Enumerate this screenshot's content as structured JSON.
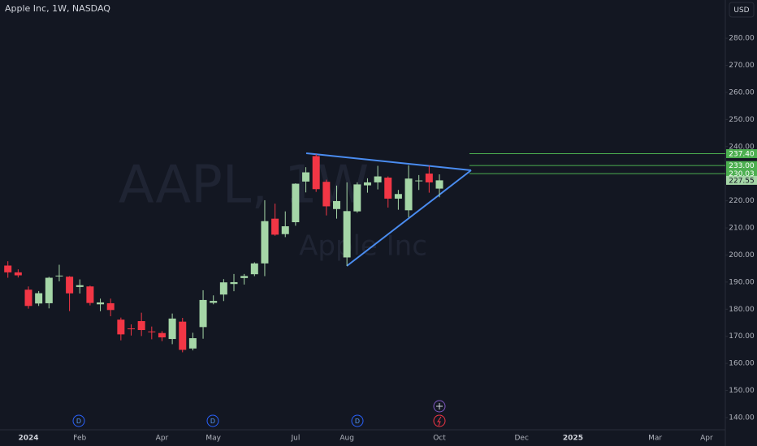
{
  "chart_data": {
    "type": "candlestick",
    "title": "Apple Inc, 1W, NASDAQ",
    "currency": "USD",
    "watermark": {
      "symbol": "AAPL, 1W",
      "name": "Apple Inc"
    },
    "categories": [
      null,
      null,
      "2024",
      null,
      null,
      null,
      null,
      "Feb",
      null,
      null,
      null,
      null,
      null,
      null,
      null,
      "Apr",
      null,
      null,
      null,
      null,
      "May",
      null,
      null,
      null,
      null,
      null,
      null,
      null,
      "Jul",
      null,
      null,
      null,
      null,
      "Aug",
      null,
      null,
      null,
      null,
      null,
      null,
      null,
      null,
      "Oct",
      null,
      null,
      null,
      null,
      null,
      null,
      null,
      "Dec",
      null,
      null,
      null,
      null,
      "2025",
      null,
      null,
      null,
      null,
      null,
      null,
      null,
      "Mar",
      null,
      null,
      null,
      null,
      "Apr",
      null
    ],
    "ohlc": {
      "open": [
        196.1,
        193.6,
        187.2,
        182.1,
        182.2,
        192.3,
        192.0,
        188.2,
        188.4,
        181.8,
        182.2,
        176.15,
        172.9,
        175.6,
        171.8,
        171.2,
        169.0,
        175.4,
        165.5,
        173.4,
        182.35,
        185.4,
        189.3,
        191.5,
        192.9,
        196.9,
        213.4,
        207.7,
        212.1,
        227.1,
        236.5,
        227.0,
        216.96,
        199.1,
        216.1,
        225.7,
        226.8,
        228.55,
        220.8,
        216.5,
        227.3,
        230.04,
        224.5,
        null,
        null,
        null,
        null,
        null,
        null,
        null,
        null,
        null,
        null,
        null,
        null,
        null,
        null,
        null,
        null,
        null,
        null,
        null,
        null,
        null,
        null,
        null,
        null,
        null,
        null,
        null
      ],
      "high": [
        197.7,
        194.7,
        188.4,
        186.7,
        191.95,
        196.4,
        192.2,
        191.0,
        188.7,
        183.9,
        183.9,
        176.9,
        174.4,
        178.7,
        173.6,
        171.9,
        178.4,
        176.8,
        171.3,
        187.0,
        185.1,
        191.1,
        193.0,
        193.0,
        197.3,
        220.2,
        218.95,
        216.1,
        226.45,
        232.4,
        237.2,
        227.8,
        225.6,
        226.8,
        226.8,
        228.3,
        232.9,
        229.0,
        224.0,
        233.1,
        229.5,
        233.0,
        229.75,
        null,
        null,
        null,
        null,
        null,
        null,
        null,
        null,
        null,
        null,
        null,
        null,
        null,
        null,
        null,
        null,
        null,
        null,
        null,
        null,
        null,
        null,
        null,
        null,
        null,
        null,
        null
      ],
      "low": [
        191.6,
        191.7,
        180.2,
        181.2,
        180.3,
        190.3,
        179.3,
        185.8,
        181.4,
        179.25,
        177.4,
        168.5,
        170.3,
        170.1,
        168.9,
        168.2,
        167.1,
        164.1,
        164.8,
        169.1,
        181.8,
        183.0,
        186.65,
        189.1,
        192.2,
        192.2,
        207.1,
        206.6,
        210.8,
        223.1,
        223.3,
        214.6,
        213.4,
        196.0,
        215.6,
        223.0,
        224.2,
        217.5,
        216.7,
        213.9,
        224.0,
        223.0,
        221.3,
        null,
        null,
        null,
        null,
        null,
        null,
        null,
        null,
        null,
        null,
        null,
        null,
        null,
        null,
        null,
        null,
        null,
        null,
        null,
        null,
        null,
        null,
        null,
        null,
        null,
        null,
        null
      ],
      "close": [
        193.6,
        192.5,
        181.2,
        185.9,
        191.6,
        192.4,
        185.85,
        188.85,
        182.3,
        182.5,
        179.7,
        170.7,
        172.6,
        172.3,
        171.5,
        169.6,
        176.55,
        165.0,
        169.3,
        183.4,
        183.05,
        189.9,
        189.98,
        192.25,
        196.9,
        212.5,
        207.5,
        210.6,
        226.3,
        230.5,
        224.3,
        217.96,
        219.9,
        216.2,
        226.05,
        226.8,
        229.0,
        220.8,
        222.5,
        228.2,
        227.5,
        226.8,
        227.55,
        null,
        null,
        null,
        null,
        null,
        null,
        null,
        null,
        null,
        null,
        null,
        null,
        null,
        null,
        null,
        null,
        null,
        null,
        null,
        null,
        null,
        null,
        null,
        null,
        null,
        null,
        null
      ]
    },
    "up_color": "#a5d6a7",
    "down_color": "#f23645",
    "ylim": [
      135.5,
      294.1
    ],
    "yticks": [
      {
        "value": 140,
        "label": "140.00"
      },
      {
        "value": 150,
        "label": "150.00"
      },
      {
        "value": 160,
        "label": "160.00"
      },
      {
        "value": 170,
        "label": "170.00"
      },
      {
        "value": 180,
        "label": "180.00"
      },
      {
        "value": 190,
        "label": "190.00"
      },
      {
        "value": 200,
        "label": "200.00"
      },
      {
        "value": 210,
        "label": "210.00"
      },
      {
        "value": 220,
        "label": "220.00"
      },
      {
        "value": 230,
        "label": "230.00"
      },
      {
        "value": 240,
        "label": "240.00"
      },
      {
        "value": 250,
        "label": "250.00"
      },
      {
        "value": 260,
        "label": "260.00"
      },
      {
        "value": 270,
        "label": "270.00"
      },
      {
        "value": 280,
        "label": "280.00"
      }
    ],
    "grid": false,
    "levels": [
      {
        "value": 237.4,
        "label": "237.40"
      },
      {
        "value": 233.0,
        "label": "233.00"
      },
      {
        "value": 230.03,
        "label": "230.03"
      }
    ],
    "level_color": "#4caf50",
    "last_price": {
      "value": 227.55,
      "label": "227.55"
    },
    "markers": [
      "D",
      "D",
      "D"
    ]
  }
}
